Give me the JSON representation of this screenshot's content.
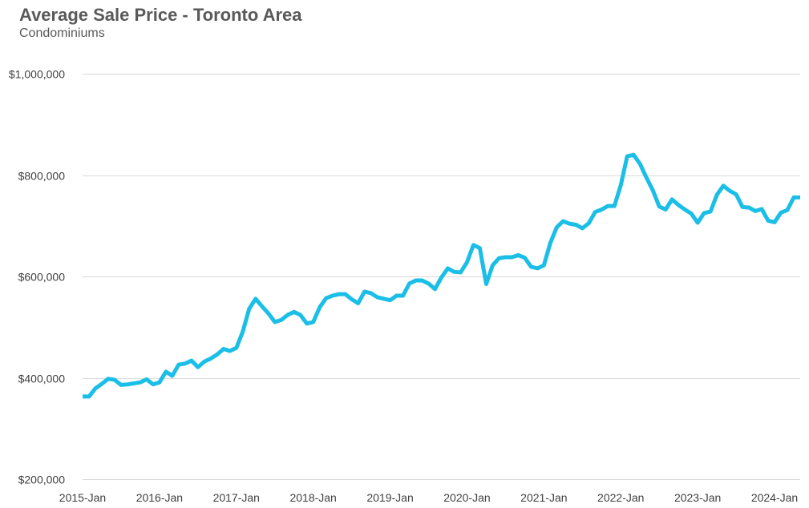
{
  "chart_data": {
    "type": "line",
    "title": "Average Sale Price - Toronto Area",
    "subtitle": "Condominiums",
    "xlabel": "",
    "ylabel": "",
    "ylim": [
      200000,
      1000000
    ],
    "y_ticks": [
      200000,
      400000,
      600000,
      800000,
      1000000
    ],
    "y_tick_labels": [
      "$200,000",
      "$400,000",
      "$600,000",
      "$800,000",
      "$1,000,000"
    ],
    "x_start": "2015-Jan",
    "x_end": "2024-May",
    "x_tick_labels": [
      "2015-Jan",
      "2016-Jan",
      "2017-Jan",
      "2018-Jan",
      "2019-Jan",
      "2020-Jan",
      "2021-Jan",
      "2022-Jan",
      "2023-Jan",
      "2024-Jan"
    ],
    "grid": true,
    "line_color": "#1ABEE6",
    "grid_color": "#D9D9D9",
    "series": [
      {
        "x": [
          "2015-Jan",
          "2015-Feb",
          "2015-Mar",
          "2015-Apr",
          "2015-May",
          "2015-Jun",
          "2015-Jul",
          "2015-Aug",
          "2015-Sep",
          "2015-Oct",
          "2015-Nov",
          "2015-Dec",
          "2016-Jan",
          "2016-Feb",
          "2016-Mar",
          "2016-Apr",
          "2016-May",
          "2016-Jun",
          "2016-Jul",
          "2016-Aug",
          "2016-Sep",
          "2016-Oct",
          "2016-Nov",
          "2016-Dec",
          "2017-Jan",
          "2017-Feb",
          "2017-Mar",
          "2017-Apr",
          "2017-May",
          "2017-Jun",
          "2017-Jul",
          "2017-Aug",
          "2017-Sep",
          "2017-Oct",
          "2017-Nov",
          "2017-Dec",
          "2018-Jan",
          "2018-Feb",
          "2018-Mar",
          "2018-Apr",
          "2018-May",
          "2018-Jun",
          "2018-Jul",
          "2018-Aug",
          "2018-Sep",
          "2018-Oct",
          "2018-Nov",
          "2018-Dec",
          "2019-Jan",
          "2019-Feb",
          "2019-Mar",
          "2019-Apr",
          "2019-May",
          "2019-Jun",
          "2019-Jul",
          "2019-Aug",
          "2019-Sep",
          "2019-Oct",
          "2019-Nov",
          "2019-Dec",
          "2020-Jan",
          "2020-Feb",
          "2020-Mar",
          "2020-Apr",
          "2020-May",
          "2020-Jun",
          "2020-Jul",
          "2020-Aug",
          "2020-Sep",
          "2020-Oct",
          "2020-Nov",
          "2020-Dec",
          "2021-Jan",
          "2021-Feb",
          "2021-Mar",
          "2021-Apr",
          "2021-May",
          "2021-Jun",
          "2021-Jul",
          "2021-Aug",
          "2021-Sep",
          "2021-Oct",
          "2021-Nov",
          "2021-Dec",
          "2022-Jan",
          "2022-Feb",
          "2022-Mar",
          "2022-Apr",
          "2022-May",
          "2022-Jun",
          "2022-Jul",
          "2022-Aug",
          "2022-Sep",
          "2022-Oct",
          "2022-Nov",
          "2022-Dec",
          "2023-Jan",
          "2023-Feb",
          "2023-Mar",
          "2023-Apr",
          "2023-May",
          "2023-Jun",
          "2023-Jul",
          "2023-Aug",
          "2023-Sep",
          "2023-Oct",
          "2023-Nov",
          "2023-Dec",
          "2024-Jan",
          "2024-Feb",
          "2024-Mar",
          "2024-Apr",
          "2024-May"
        ],
        "values": [
          363000,
          363000,
          379000,
          388000,
          398000,
          396000,
          386000,
          387000,
          389000,
          391000,
          397000,
          387000,
          391000,
          412000,
          404000,
          426000,
          428000,
          434000,
          421000,
          432000,
          438000,
          446000,
          457000,
          453000,
          459000,
          491000,
          536000,
          556000,
          541000,
          527000,
          510000,
          514000,
          524000,
          530000,
          524000,
          507000,
          510000,
          539000,
          557000,
          562000,
          565000,
          565000,
          555000,
          547000,
          570000,
          567000,
          559000,
          556000,
          553000,
          562000,
          562000,
          586000,
          592000,
          592000,
          586000,
          575000,
          598000,
          616000,
          609000,
          608000,
          628000,
          662000,
          656000,
          585000,
          622000,
          636000,
          638000,
          638000,
          642000,
          637000,
          619000,
          616000,
          622000,
          666000,
          697000,
          709000,
          704000,
          702000,
          695000,
          705000,
          727000,
          732000,
          739000,
          739000,
          780000,
          837000,
          840000,
          822000,
          795000,
          770000,
          738000,
          732000,
          752000,
          741000,
          732000,
          724000,
          706000,
          725000,
          728000,
          761000,
          779000,
          769000,
          762000,
          737000,
          736000,
          729000,
          733000,
          710000,
          707000,
          726000,
          731000,
          756000,
          756000
        ]
      }
    ]
  }
}
